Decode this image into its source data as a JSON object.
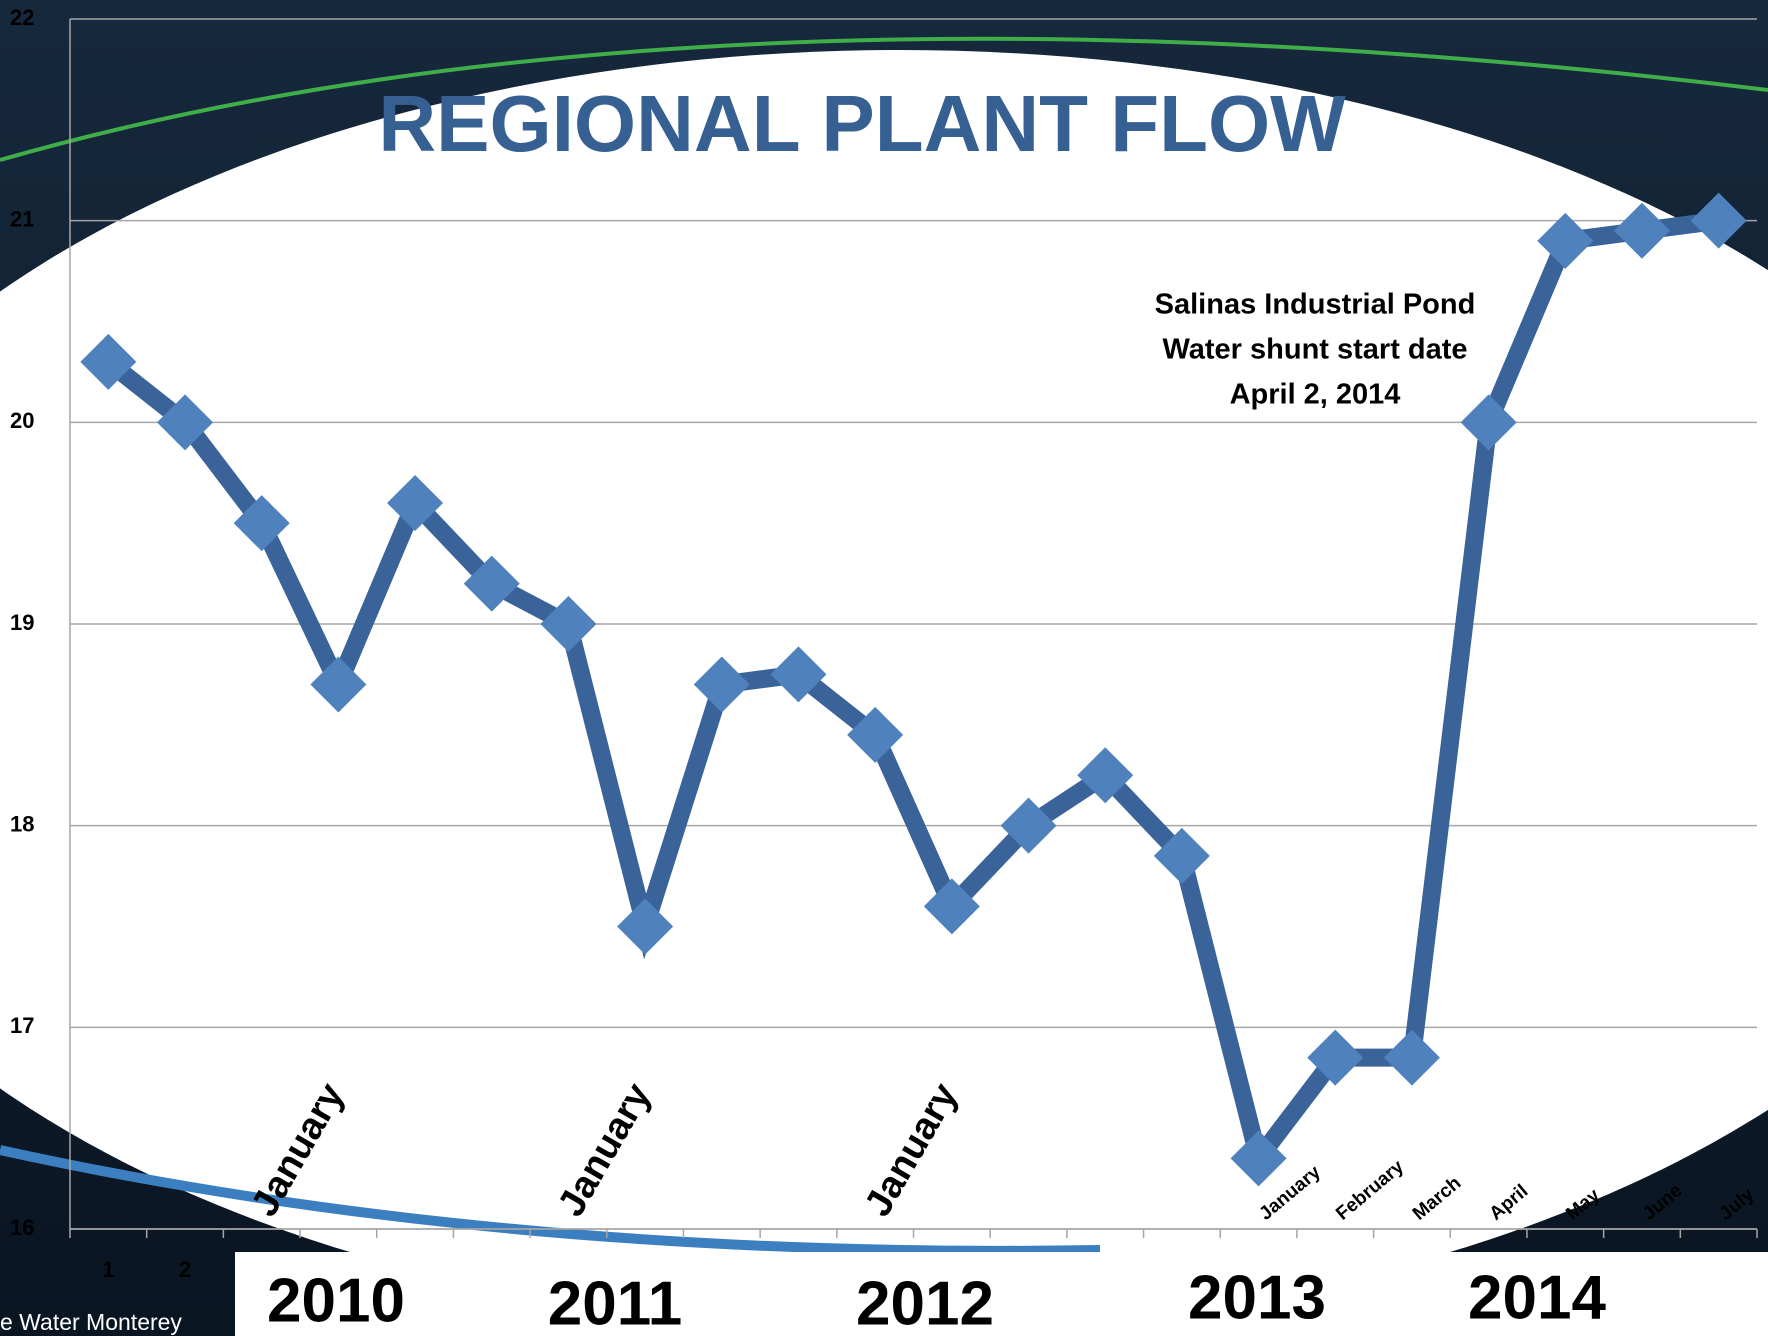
{
  "chart_data": {
    "type": "line",
    "title": "REGIONAL PLANT FLOW",
    "categories": [
      "1",
      "2",
      null,
      "January",
      null,
      null,
      null,
      "January",
      null,
      null,
      null,
      "January",
      null,
      null,
      null,
      "January",
      "February",
      "March",
      "April",
      "May",
      "June",
      "July"
    ],
    "values": [
      20.3,
      20.0,
      19.5,
      18.7,
      19.6,
      19.2,
      19.0,
      17.5,
      18.7,
      18.75,
      18.45,
      17.6,
      18.0,
      18.25,
      17.85,
      16.35,
      16.85,
      16.85,
      20.0,
      20.9,
      20.95,
      21.0
    ],
    "color": "#3a6399",
    "marker_color": "#4f81bd",
    "ylim": [
      16,
      22
    ],
    "yticks": [
      16,
      17,
      18,
      19,
      20,
      21,
      22
    ],
    "grid": true,
    "annotation": [
      "Salinas Industrial  Pond",
      "Water shunt start date",
      "April 2, 2014"
    ],
    "year_labels": [
      "2010",
      "2011",
      "2012",
      "2013",
      "2014"
    ],
    "logo_text": "e Water Monterey"
  }
}
